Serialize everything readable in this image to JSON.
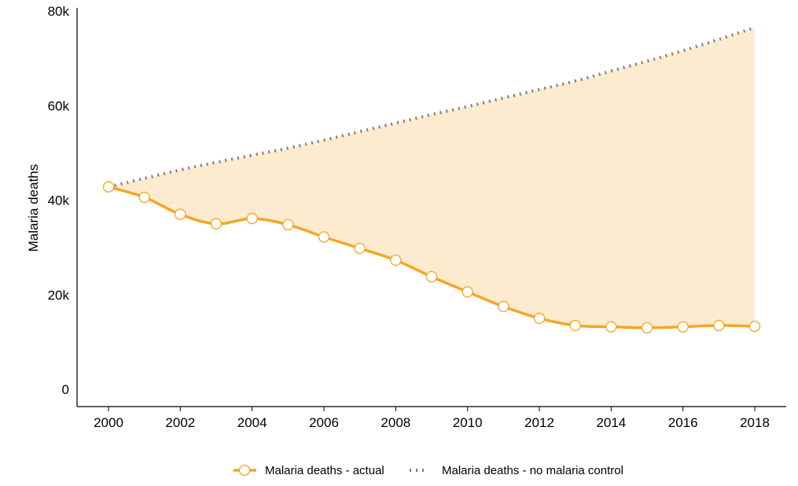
{
  "chart_data": {
    "type": "line",
    "title": "",
    "xlabel": "",
    "ylabel": "Malaria deaths",
    "x": [
      2000,
      2001,
      2002,
      2003,
      2004,
      2005,
      2006,
      2007,
      2008,
      2009,
      2010,
      2011,
      2012,
      2013,
      2014,
      2015,
      2016,
      2017,
      2018
    ],
    "xlim": [
      2000,
      2018
    ],
    "xticks": [
      2000,
      2002,
      2004,
      2006,
      2008,
      2010,
      2012,
      2014,
      2016,
      2018
    ],
    "xtick_labels": [
      "2000",
      "2002",
      "2004",
      "2006",
      "2008",
      "2010",
      "2012",
      "2014",
      "2016",
      "2018"
    ],
    "ylim": [
      0,
      80000
    ],
    "yticks": [
      0,
      20000,
      40000,
      60000,
      80000
    ],
    "ytick_labels": [
      "0",
      "20k",
      "40k",
      "60k",
      "80k"
    ],
    "grid": false,
    "legend_position": "bottom",
    "shaded_area": "between series",
    "series": [
      {
        "name": "Malaria deaths - actual",
        "style": "solid line with hollow circle markers",
        "color": "#f5a623",
        "values": [
          42800,
          40600,
          37000,
          35000,
          36100,
          34800,
          32200,
          29800,
          27300,
          23800,
          20600,
          17500,
          15000,
          13500,
          13200,
          13000,
          13200,
          13500,
          13300
        ]
      },
      {
        "name": "Malaria deaths - no malaria control",
        "style": "dotted line",
        "color": "#7f7f7f",
        "values": [
          42800,
          44600,
          46400,
          48000,
          49500,
          51000,
          52700,
          54500,
          56300,
          58100,
          59800,
          61600,
          63400,
          65200,
          67300,
          69400,
          71600,
          74000,
          76500
        ]
      }
    ],
    "fill_color": "#fdebd0"
  }
}
